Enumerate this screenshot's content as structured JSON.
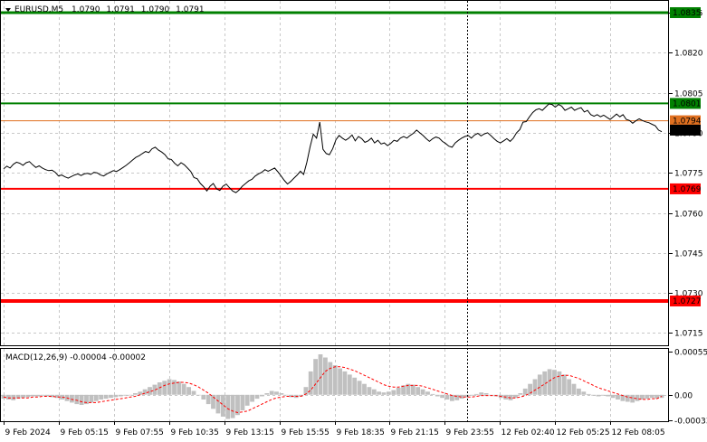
{
  "chart_data": [
    {
      "type": "line",
      "panel": "price",
      "title": "EURUSD,M5",
      "ohlc": [
        "1.0790",
        "1.0791",
        "1.0790",
        "1.0791"
      ],
      "ylim": [
        1.07104,
        1.08394
      ],
      "yticks": [
        "1.0835",
        "1.0820",
        "1.0805",
        "1.0790",
        "1.0775",
        "1.0760",
        "1.0745",
        "1.0730",
        "1.0715"
      ],
      "current_price": "1.0791",
      "levels": [
        {
          "price": "1.0835",
          "value": 1.0835,
          "color": "#008000",
          "width": 3
        },
        {
          "price": "1.0801",
          "value": 1.0801,
          "color": "#008000",
          "width": 2
        },
        {
          "price": "1.0794",
          "value": 1.07945,
          "color": "#e07020",
          "width": 1
        },
        {
          "price": "1.0769",
          "value": 1.0769,
          "color": "#ff0000",
          "width": 2
        },
        {
          "price": "1.0727",
          "value": 1.0727,
          "color": "#ff0000",
          "width": 4
        }
      ],
      "series": [
        {
          "values": [
            1.07765,
            1.07775,
            1.07768,
            1.07782,
            1.0779,
            1.07786,
            1.07778,
            1.07788,
            1.07792,
            1.0778,
            1.0777,
            1.07776,
            1.07768,
            1.07762,
            1.07758,
            1.0776,
            1.07752,
            1.07738,
            1.07742,
            1.07735,
            1.0773,
            1.07736,
            1.07742,
            1.07746,
            1.0774,
            1.07746,
            1.07748,
            1.07744,
            1.07752,
            1.0775,
            1.07742,
            1.07738,
            1.07746,
            1.07752,
            1.07758,
            1.07755,
            1.07762,
            1.0777,
            1.07778,
            1.07788,
            1.07798,
            1.07808,
            1.07814,
            1.07822,
            1.0783,
            1.07826,
            1.0784,
            1.07846,
            1.07835,
            1.07828,
            1.07818,
            1.07802,
            1.078,
            1.07786,
            1.07776,
            1.07788,
            1.0778,
            1.07768,
            1.07755,
            1.07732,
            1.07728,
            1.0771,
            1.07698,
            1.07682,
            1.077,
            1.0771,
            1.0769,
            1.07684,
            1.077,
            1.07708,
            1.07694,
            1.07682,
            1.07676,
            1.07686,
            1.077,
            1.0771,
            1.0772,
            1.07726,
            1.07738,
            1.07746,
            1.07752,
            1.07762,
            1.07756,
            1.07762,
            1.07768,
            1.07754,
            1.07738,
            1.07722,
            1.07708,
            1.07718,
            1.0773,
            1.07742,
            1.07756,
            1.07744,
            1.0779,
            1.07848,
            1.07895,
            1.0788,
            1.0794,
            1.07838,
            1.07822,
            1.07818,
            1.0784,
            1.07874,
            1.0789,
            1.0788,
            1.07872,
            1.0788,
            1.07892,
            1.0787,
            1.07886,
            1.07878,
            1.07864,
            1.0787,
            1.0788,
            1.07862,
            1.07872,
            1.07858,
            1.07862,
            1.07852,
            1.0786,
            1.07872,
            1.07868,
            1.0788,
            1.07886,
            1.0788,
            1.0789,
            1.07898,
            1.0791,
            1.079,
            1.0789,
            1.07878,
            1.07868,
            1.07878,
            1.07884,
            1.0788,
            1.07868,
            1.0786,
            1.0785,
            1.07846,
            1.07862,
            1.07872,
            1.0788,
            1.07886,
            1.0789,
            1.0788,
            1.07892,
            1.07898,
            1.07888,
            1.07896,
            1.079,
            1.0789,
            1.07878,
            1.07868,
            1.07862,
            1.0787,
            1.07878,
            1.07868,
            1.0788,
            1.079,
            1.07912,
            1.0794,
            1.07942,
            1.0796,
            1.07976,
            1.07986,
            1.0799,
            1.07984,
            1.07996,
            1.08008,
            1.08006,
            1.07996,
            1.08006,
            1.08,
            1.07984,
            1.0799,
            1.07996,
            1.07984,
            1.0799,
            1.07994,
            1.07978,
            1.07984,
            1.07968,
            1.07962,
            1.07968,
            1.0796,
            1.07966,
            1.07958,
            1.0795,
            1.0796,
            1.0797,
            1.0796,
            1.07968,
            1.0795,
            1.07946,
            1.07936,
            1.07945,
            1.07952,
            1.07946,
            1.07941,
            1.07938,
            1.07932,
            1.07926,
            1.0791,
            1.07904
          ]
        }
      ]
    },
    {
      "type": "bar",
      "panel": "macd",
      "title": "MACD(12,26,9) -0.00004 -0.00002",
      "ylim": [
        -0.00034,
        0.00059
      ],
      "yticks": [
        "0.00055",
        "0.00",
        "-0.00033"
      ],
      "series": [
        {
          "values": [
            -5e-05,
            -6e-05,
            -7e-05,
            -5e-05,
            -4e-05,
            -3e-05,
            -2e-05,
            -2e-05,
            -1e-05,
            -2e-05,
            -3e-05,
            -4e-05,
            -6e-05,
            -8e-05,
            -0.0001,
            -0.00012,
            -0.00013,
            -0.00012,
            -0.0001,
            -8e-05,
            -6e-05,
            -5e-05,
            -4e-05,
            -3e-05,
            -2e-05,
            -1e-05,
            0.0,
            2e-05,
            4e-05,
            7e-05,
            0.0001,
            0.00013,
            0.00016,
            0.00018,
            0.0002,
            0.00019,
            0.00017,
            0.00014,
            0.0001,
            5e-05,
            0.0,
            -6e-05,
            -0.00012,
            -0.00018,
            -0.00024,
            -0.00028,
            -0.00031,
            -0.0003,
            -0.00026,
            -0.0002,
            -0.00014,
            -9e-05,
            -5e-05,
            -2e-05,
            2e-05,
            5e-05,
            4e-05,
            2e-05,
            0.0,
            -3e-05,
            -4e-05,
            -2e-05,
            0.0001,
            0.0003,
            0.00046,
            0.00052,
            0.00048,
            0.00042,
            0.00038,
            0.00034,
            0.0003,
            0.00026,
            0.00022,
            0.00018,
            0.00014,
            0.0001,
            7e-05,
            4e-05,
            3e-05,
            4e-05,
            6e-05,
            9e-05,
            0.00012,
            0.00014,
            0.00013,
            0.0001,
            7e-05,
            4e-05,
            1e-05,
            -2e-05,
            -4e-05,
            -6e-05,
            -8e-05,
            -7e-05,
            -5e-05,
            -3e-05,
            -1e-05,
            1e-05,
            3e-05,
            2e-05,
            0.0,
            -2e-05,
            -4e-05,
            -6e-05,
            -7e-05,
            -4e-05,
            2e-05,
            8e-05,
            0.00014,
            0.0002,
            0.00026,
            0.0003,
            0.00033,
            0.00032,
            0.0003,
            0.00026,
            0.0002,
            0.00014,
            8e-05,
            4e-05,
            1e-05,
            -1e-05,
            -2e-05,
            -1e-05,
            -2e-05,
            -4e-05,
            -6e-05,
            -8e-05,
            -9e-05,
            -0.0001,
            -8e-05,
            -6e-05,
            -5e-05,
            -4e-05,
            -5e-05,
            -4e-05
          ]
        },
        {
          "values": [
            -3e-05,
            -4e-05,
            -4e-05,
            -4e-05,
            -4e-05,
            -4e-05,
            -3e-05,
            -3e-05,
            -2e-05,
            -2e-05,
            -2e-05,
            -3e-05,
            -3e-05,
            -4e-05,
            -6e-05,
            -7e-05,
            -9e-05,
            -0.0001,
            -0.0001,
            -0.0001,
            -9e-05,
            -8e-05,
            -7e-05,
            -6e-05,
            -5e-05,
            -4e-05,
            -3e-05,
            -2e-05,
            0.0,
            2e-05,
            4e-05,
            6e-05,
            9e-05,
            0.00012,
            0.00014,
            0.00015,
            0.00016,
            0.00016,
            0.00015,
            0.00013,
            0.0001,
            6e-05,
            2e-05,
            -3e-05,
            -8e-05,
            -0.00013,
            -0.00018,
            -0.00021,
            -0.00023,
            -0.00022,
            -0.00021,
            -0.00018,
            -0.00015,
            -0.00012,
            -9e-05,
            -6e-05,
            -4e-05,
            -3e-05,
            -2e-05,
            -2e-05,
            -2e-05,
            -2e-05,
            1e-05,
            6e-05,
            0.00014,
            0.00022,
            0.0003,
            0.00034,
            0.00036,
            0.00036,
            0.00035,
            0.00033,
            0.00031,
            0.00028,
            0.00025,
            0.00022,
            0.00019,
            0.00016,
            0.00013,
            0.00011,
            0.0001,
            0.0001,
            0.00011,
            0.00012,
            0.00012,
            0.00012,
            0.00011,
            9e-05,
            7e-05,
            5e-05,
            3e-05,
            1e-05,
            -1e-05,
            -2e-05,
            -3e-05,
            -3e-05,
            -3e-05,
            -2e-05,
            -1e-05,
            -1e-05,
            -1e-05,
            -1e-05,
            -2e-05,
            -3e-05,
            -4e-05,
            -4e-05,
            -3e-05,
            -1e-05,
            2e-05,
            6e-05,
            0.0001,
            0.00014,
            0.00018,
            0.00022,
            0.00024,
            0.00025,
            0.00025,
            0.00023,
            0.00021,
            0.00018,
            0.00015,
            0.00012,
            9e-05,
            7e-05,
            5e-05,
            3e-05,
            1e-05,
            -1e-05,
            -3e-05,
            -4e-05,
            -5e-05,
            -6e-05,
            -6e-05,
            -5e-05,
            -5e-05,
            -2e-05
          ]
        }
      ]
    }
  ],
  "time_axis": [
    "9 Feb 2024",
    "9 Feb 05:15",
    "9 Feb 07:55",
    "9 Feb 10:35",
    "9 Feb 13:15",
    "9 Feb 15:55",
    "9 Feb 18:35",
    "9 Feb 21:15",
    "9 Feb 23:55",
    "12 Feb 02:40",
    "12 Feb 05:25",
    "12 Feb 08:05"
  ],
  "colors": {
    "price_line": "#000000",
    "macd_hist": "#c0c0c0",
    "signal_line": "#ff0000",
    "current_price_bg": "#000000",
    "current_price_text": "#ffffff",
    "label_text": "#ffffff"
  },
  "icons": {
    "title_marker": "triangle-down-icon"
  }
}
